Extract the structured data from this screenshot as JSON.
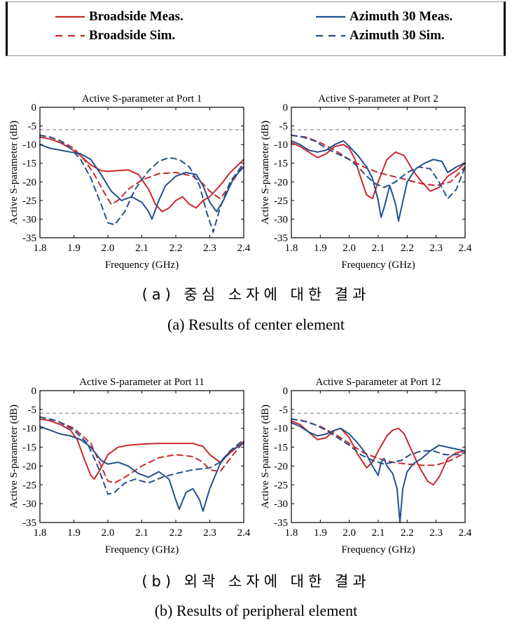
{
  "legend": {
    "items": [
      {
        "label": "Broadside Meas.",
        "color": "#c8282d",
        "dash": "solid"
      },
      {
        "label": "Broadside Sim.",
        "color": "#c8282d",
        "dash": "dashed"
      },
      {
        "label": "Azimuth 30 Meas.",
        "color": "#24508c",
        "dash": "solid"
      },
      {
        "label": "Azimuth 30 Sim.",
        "color": "#24508c",
        "dash": "dashed"
      }
    ]
  },
  "captions": {
    "a_ko": "(a) 중심 소자에 대한 결과",
    "a_en": "(a)  Results of center element",
    "b_ko": "(b) 외곽 소자에 대한 결과",
    "b_en": "(b)  Results of peripheral element"
  },
  "chart_data": [
    {
      "type": "line",
      "title": "Active S-parameter at Port 1",
      "xlabel": "Frequency (GHz)",
      "ylabel": "Active S-parameter (dB)",
      "xlim": [
        1.8,
        2.4
      ],
      "ylim": [
        -35,
        0
      ],
      "xticks": [
        1.8,
        1.9,
        2.0,
        2.1,
        2.2,
        2.3,
        2.4
      ],
      "yticks": [
        0,
        -5,
        -10,
        -15,
        -20,
        -25,
        -30,
        -35
      ],
      "reference_line": -6,
      "series": [
        {
          "name": "Broadside Meas.",
          "color": "#c8282d",
          "dash": "solid",
          "x": [
            1.8,
            1.83,
            1.86,
            1.89,
            1.92,
            1.95,
            1.98,
            2.0,
            2.03,
            2.06,
            2.09,
            2.12,
            2.14,
            2.16,
            2.18,
            2.2,
            2.22,
            2.24,
            2.26,
            2.28,
            2.3,
            2.33,
            2.36,
            2.4
          ],
          "y": [
            -8,
            -8.5,
            -9.5,
            -11,
            -13,
            -15.5,
            -17,
            -17.2,
            -17,
            -16.8,
            -18,
            -22,
            -26,
            -28,
            -27,
            -25,
            -24,
            -26,
            -27,
            -25,
            -24,
            -21,
            -17.5,
            -14
          ]
        },
        {
          "name": "Broadside Sim.",
          "color": "#c8282d",
          "dash": "dashed",
          "x": [
            1.8,
            1.83,
            1.86,
            1.9,
            1.93,
            1.96,
            1.99,
            2.01,
            2.03,
            2.06,
            2.1,
            2.15,
            2.2,
            2.25,
            2.28,
            2.3,
            2.33,
            2.36,
            2.4
          ],
          "y": [
            -7.5,
            -8,
            -9,
            -11,
            -14,
            -18,
            -23,
            -26,
            -25,
            -22,
            -19.5,
            -17.8,
            -17.5,
            -18.5,
            -20.5,
            -22.5,
            -24.5,
            -21,
            -15
          ]
        },
        {
          "name": "Azimuth 30 Meas.",
          "color": "#24508c",
          "dash": "solid",
          "x": [
            1.8,
            1.83,
            1.86,
            1.89,
            1.92,
            1.95,
            1.98,
            2.01,
            2.04,
            2.07,
            2.1,
            2.12,
            2.13,
            2.15,
            2.17,
            2.2,
            2.23,
            2.26,
            2.28,
            2.3,
            2.32,
            2.34,
            2.37,
            2.4
          ],
          "y": [
            -10,
            -11,
            -11.5,
            -12,
            -12.5,
            -14,
            -18,
            -22.5,
            -25,
            -24,
            -25.5,
            -28,
            -30,
            -25,
            -21,
            -18.5,
            -17.5,
            -18,
            -21,
            -25.5,
            -28,
            -25,
            -19,
            -16
          ]
        },
        {
          "name": "Azimuth 30 Sim.",
          "color": "#24508c",
          "dash": "dashed",
          "x": [
            1.8,
            1.83,
            1.86,
            1.89,
            1.92,
            1.95,
            1.98,
            2.0,
            2.02,
            2.05,
            2.08,
            2.12,
            2.15,
            2.18,
            2.21,
            2.24,
            2.27,
            2.29,
            2.31,
            2.33,
            2.36,
            2.4
          ],
          "y": [
            -7.5,
            -8,
            -9,
            -11,
            -14,
            -19,
            -26,
            -31,
            -31.5,
            -28,
            -22,
            -17,
            -14.5,
            -13.5,
            -14,
            -16,
            -21,
            -28,
            -33.5,
            -27,
            -20,
            -15
          ]
        }
      ]
    },
    {
      "type": "line",
      "title": "Active S-parameter at Port 2",
      "xlabel": "Frequency (GHz)",
      "ylabel": "Active S-parameter (dB)",
      "xlim": [
        1.8,
        2.4
      ],
      "ylim": [
        -35,
        0
      ],
      "xticks": [
        1.8,
        1.9,
        2.0,
        2.1,
        2.2,
        2.3,
        2.4
      ],
      "yticks": [
        0,
        -5,
        -10,
        -15,
        -20,
        -25,
        -30,
        -35
      ],
      "reference_line": -6,
      "series": [
        {
          "name": "Broadside Meas.",
          "color": "#c8282d",
          "dash": "solid",
          "x": [
            1.8,
            1.83,
            1.86,
            1.89,
            1.92,
            1.95,
            1.98,
            2.0,
            2.02,
            2.04,
            2.06,
            2.08,
            2.1,
            2.13,
            2.16,
            2.19,
            2.22,
            2.25,
            2.28,
            2.31,
            2.34,
            2.37,
            2.4
          ],
          "y": [
            -9.5,
            -10.5,
            -12,
            -13.5,
            -12.5,
            -10.5,
            -10,
            -11,
            -14,
            -19,
            -23.5,
            -24.5,
            -20,
            -14,
            -12,
            -13,
            -17,
            -20,
            -22.5,
            -21.5,
            -18.5,
            -17,
            -15
          ]
        },
        {
          "name": "Broadside Sim.",
          "color": "#c8282d",
          "dash": "dashed",
          "x": [
            1.8,
            1.85,
            1.9,
            1.95,
            2.0,
            2.05,
            2.1,
            2.15,
            2.2,
            2.25,
            2.3,
            2.35,
            2.4
          ],
          "y": [
            -7.5,
            -8,
            -9.5,
            -11.5,
            -14,
            -16,
            -17.5,
            -18.5,
            -19.5,
            -20.5,
            -21,
            -20,
            -16
          ]
        },
        {
          "name": "Azimuth 30 Meas.",
          "color": "#24508c",
          "dash": "solid",
          "x": [
            1.8,
            1.83,
            1.86,
            1.89,
            1.92,
            1.95,
            1.98,
            2.0,
            2.03,
            2.06,
            2.08,
            2.1,
            2.11,
            2.12,
            2.14,
            2.16,
            2.17,
            2.18,
            2.2,
            2.23,
            2.26,
            2.29,
            2.32,
            2.34,
            2.37,
            2.4
          ],
          "y": [
            -9,
            -10,
            -11.5,
            -12,
            -11.5,
            -10,
            -9,
            -10.5,
            -13,
            -16,
            -19,
            -25,
            -29.5,
            -27,
            -21,
            -26,
            -30.5,
            -27,
            -20,
            -16.5,
            -15,
            -14,
            -14.5,
            -17.5,
            -16,
            -15
          ]
        },
        {
          "name": "Azimuth 30 Sim.",
          "color": "#24508c",
          "dash": "dashed",
          "x": [
            1.8,
            1.84,
            1.88,
            1.92,
            1.96,
            2.0,
            2.03,
            2.06,
            2.09,
            2.12,
            2.16,
            2.2,
            2.24,
            2.28,
            2.31,
            2.34,
            2.37,
            2.4
          ],
          "y": [
            -7.5,
            -8,
            -9,
            -11,
            -12.5,
            -14,
            -16,
            -18.5,
            -20.5,
            -21.5,
            -20,
            -17.5,
            -16,
            -16.5,
            -20,
            -24.5,
            -22,
            -16
          ]
        }
      ]
    },
    {
      "type": "line",
      "title": "Active S-parameter at Port 11",
      "xlabel": "Frequency (GHz)",
      "ylabel": "Active S-parameter (dB)",
      "xlim": [
        1.8,
        2.4
      ],
      "ylim": [
        -35,
        0
      ],
      "xticks": [
        1.8,
        1.9,
        2.0,
        2.1,
        2.2,
        2.3,
        2.4
      ],
      "yticks": [
        0,
        -5,
        -10,
        -15,
        -20,
        -25,
        -30,
        -35
      ],
      "reference_line": -6,
      "series": [
        {
          "name": "Broadside Meas.",
          "color": "#c8282d",
          "dash": "solid",
          "x": [
            1.8,
            1.83,
            1.86,
            1.89,
            1.91,
            1.93,
            1.95,
            1.96,
            1.98,
            2.0,
            2.03,
            2.06,
            2.1,
            2.15,
            2.2,
            2.25,
            2.28,
            2.3,
            2.33,
            2.36,
            2.4
          ],
          "y": [
            -7.5,
            -8,
            -9,
            -10.5,
            -13,
            -18,
            -22.5,
            -23.5,
            -20.5,
            -17,
            -15,
            -14.5,
            -14.2,
            -14,
            -14,
            -14,
            -14.8,
            -17,
            -19,
            -16.5,
            -13.5
          ]
        },
        {
          "name": "Broadside Sim.",
          "color": "#c8282d",
          "dash": "dashed",
          "x": [
            1.8,
            1.85,
            1.9,
            1.95,
            1.98,
            2.0,
            2.02,
            2.05,
            2.1,
            2.15,
            2.2,
            2.25,
            2.28,
            2.3,
            2.33,
            2.36,
            2.4
          ],
          "y": [
            -7,
            -8,
            -10,
            -14,
            -20,
            -24,
            -24.5,
            -23,
            -20,
            -17.8,
            -17,
            -17.5,
            -19,
            -21,
            -21.5,
            -18,
            -13.5
          ]
        },
        {
          "name": "Azimuth 30 Meas.",
          "color": "#24508c",
          "dash": "solid",
          "x": [
            1.8,
            1.83,
            1.86,
            1.89,
            1.92,
            1.95,
            1.98,
            2.0,
            2.03,
            2.06,
            2.09,
            2.12,
            2.15,
            2.18,
            2.2,
            2.21,
            2.23,
            2.25,
            2.27,
            2.28,
            2.3,
            2.33,
            2.36,
            2.4
          ],
          "y": [
            -9.5,
            -10.5,
            -11.5,
            -12,
            -13,
            -15,
            -18.5,
            -19.5,
            -19,
            -20,
            -22,
            -23,
            -21.5,
            -23.5,
            -29,
            -31.5,
            -27,
            -26,
            -29,
            -32,
            -26,
            -19.5,
            -16,
            -14
          ]
        },
        {
          "name": "Azimuth 30 Sim.",
          "color": "#24508c",
          "dash": "dashed",
          "x": [
            1.8,
            1.85,
            1.9,
            1.94,
            1.97,
            2.0,
            2.02,
            2.05,
            2.08,
            2.12,
            2.16,
            2.2,
            2.25,
            2.3,
            2.33,
            2.36,
            2.4
          ],
          "y": [
            -7,
            -8,
            -10.5,
            -14,
            -20,
            -27.5,
            -27,
            -24.5,
            -23.5,
            -24.5,
            -23,
            -22,
            -21,
            -20.5,
            -19,
            -16,
            -13
          ]
        }
      ]
    },
    {
      "type": "line",
      "title": "Active S-parameter at Port 12",
      "xlabel": "Frequency (GHz)",
      "ylabel": "Active S-parameter (dB)",
      "xlim": [
        1.8,
        2.4
      ],
      "ylim": [
        -35,
        0
      ],
      "xticks": [
        1.8,
        1.9,
        2.0,
        2.1,
        2.2,
        2.3,
        2.4
      ],
      "yticks": [
        0,
        -5,
        -10,
        -15,
        -20,
        -25,
        -30,
        -35
      ],
      "reference_line": -6,
      "series": [
        {
          "name": "Broadside Meas.",
          "color": "#c8282d",
          "dash": "solid",
          "x": [
            1.8,
            1.83,
            1.86,
            1.89,
            1.92,
            1.95,
            1.97,
            2.0,
            2.03,
            2.06,
            2.08,
            2.1,
            2.13,
            2.15,
            2.17,
            2.19,
            2.21,
            2.24,
            2.27,
            2.29,
            2.31,
            2.34,
            2.37,
            2.4
          ],
          "y": [
            -8,
            -9,
            -11,
            -13,
            -12.5,
            -10.5,
            -10,
            -12.5,
            -17,
            -20.5,
            -19,
            -16,
            -12,
            -10.5,
            -10,
            -11.5,
            -15,
            -20,
            -24,
            -25,
            -23,
            -18,
            -16.5,
            -16
          ]
        },
        {
          "name": "Broadside Sim.",
          "color": "#c8282d",
          "dash": "dashed",
          "x": [
            1.8,
            1.85,
            1.9,
            1.95,
            2.0,
            2.05,
            2.1,
            2.15,
            2.2,
            2.25,
            2.3,
            2.35,
            2.4
          ],
          "y": [
            -7.5,
            -8.2,
            -9.5,
            -11.5,
            -14,
            -16.5,
            -18,
            -19,
            -19.5,
            -19.8,
            -19.8,
            -18.5,
            -16.5
          ]
        },
        {
          "name": "Azimuth 30 Meas.",
          "color": "#24508c",
          "dash": "solid",
          "x": [
            1.8,
            1.83,
            1.86,
            1.89,
            1.92,
            1.95,
            1.97,
            2.0,
            2.03,
            2.06,
            2.08,
            2.1,
            2.11,
            2.12,
            2.13,
            2.15,
            2.165,
            2.175,
            2.185,
            2.2,
            2.22,
            2.25,
            2.28,
            2.31,
            2.34,
            2.37,
            2.4
          ],
          "y": [
            -8.5,
            -9.5,
            -11,
            -12,
            -11.5,
            -10.5,
            -10,
            -11.5,
            -14,
            -17,
            -20,
            -22.5,
            -19,
            -18,
            -20,
            -22,
            -26,
            -35,
            -26,
            -21.5,
            -19.5,
            -18,
            -16,
            -14.5,
            -15,
            -15.5,
            -16
          ]
        },
        {
          "name": "Azimuth 30 Sim.",
          "color": "#24508c",
          "dash": "dashed",
          "x": [
            1.8,
            1.84,
            1.88,
            1.92,
            1.96,
            2.0,
            2.04,
            2.08,
            2.12,
            2.15,
            2.18,
            2.21,
            2.25,
            2.29,
            2.33,
            2.37,
            2.4
          ],
          "y": [
            -7.5,
            -8,
            -9,
            -10.5,
            -12.5,
            -14.5,
            -17,
            -18.5,
            -19.5,
            -19,
            -18.5,
            -17,
            -16,
            -16,
            -17,
            -17,
            -16.5
          ]
        }
      ]
    }
  ]
}
